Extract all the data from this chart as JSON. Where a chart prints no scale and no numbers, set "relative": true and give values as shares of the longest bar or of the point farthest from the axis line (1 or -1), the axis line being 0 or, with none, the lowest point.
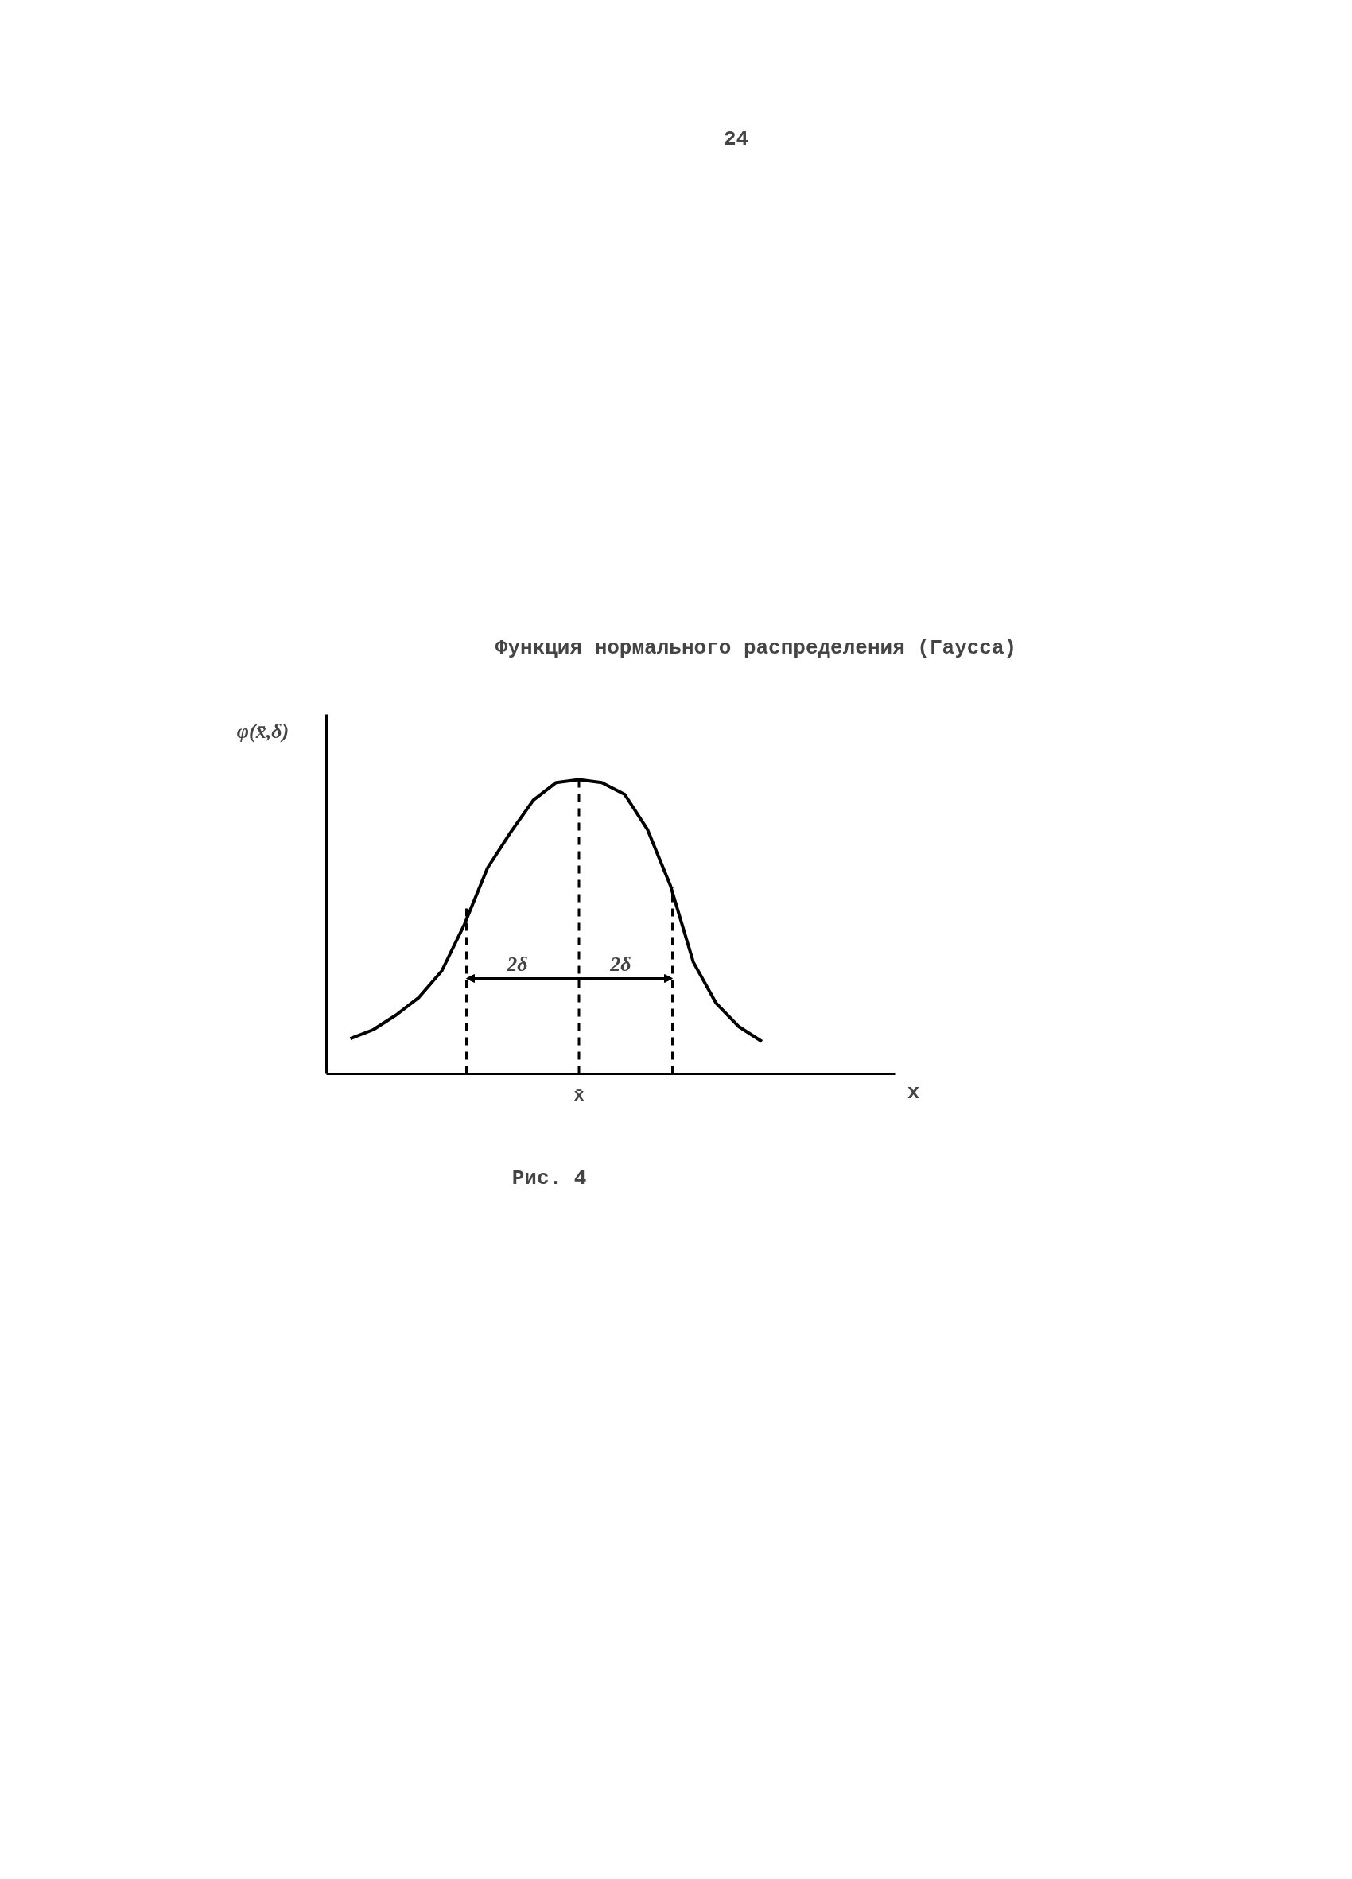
{
  "chart_data": {
    "type": "line",
    "title": "Функция нормального распределения (Гаусса)",
    "ylabel": "φ(x̄,δ)",
    "relative": true,
    "categories": [
      null,
      null,
      null,
      null,
      null,
      null,
      null,
      null,
      null,
      null,
      null,
      null,
      null,
      null,
      null,
      null,
      null,
      null,
      null
    ],
    "series": [
      {
        "color": "#000000",
        "values": [
          0.12,
          0.15,
          0.2,
          0.26,
          0.35,
          0.51,
          0.7,
          0.82,
          0.93,
          0.99,
          1,
          0.99,
          0.95,
          0.83,
          0.64,
          0.38,
          0.24,
          0.16,
          0.11
        ]
      }
    ],
    "annotations": [
      "24",
      "2δ",
      "2δ",
      "x̄",
      "x",
      "Рис. 4"
    ],
    "grid": false,
    "line_style": "solid",
    "marker": "none"
  }
}
